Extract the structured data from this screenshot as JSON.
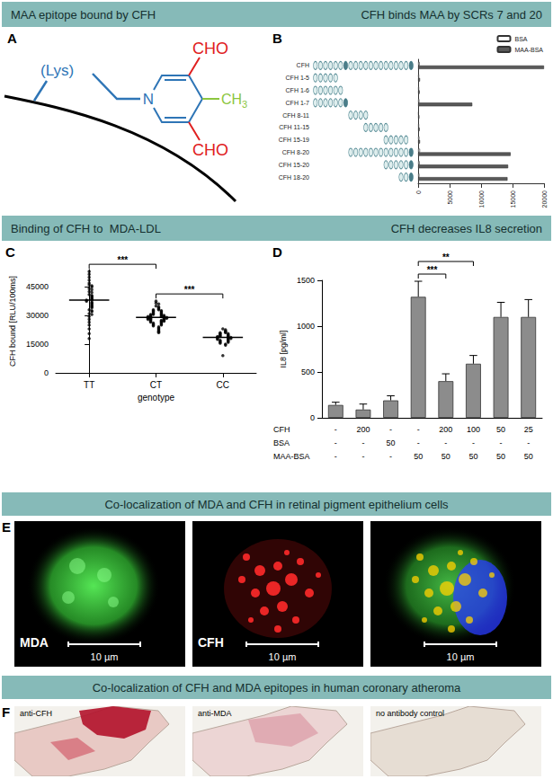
{
  "headers": [
    {
      "left": "MAA epitope bound by CFH",
      "right": "CFH binds MAA by SCRs 7 and 20"
    },
    {
      "left": "Binding of CFH to  MDA-LDL",
      "right": "CFH decreases IL8 secretion"
    },
    {
      "center": "Co-localization of MDA and CFH in retinal pigment epithelium cells"
    },
    {
      "center": "Co-localization of CFH and MDA epitopes in human coronary atheroma"
    }
  ],
  "panel_A": {
    "letter": "A",
    "lysine": "(Lys)",
    "nitrogen": "N",
    "aldehydes": [
      "CHO",
      "CHO"
    ],
    "methyl": "CH3"
  },
  "chart_data": [
    {
      "letter": "B",
      "type": "bar",
      "orientation": "horizontal",
      "categories": [
        "CFH",
        "CFH 1-5",
        "CFH 1-6",
        "CFH 1-7",
        "CFH 8-11",
        "CFH 11-15",
        "CFH 15-19",
        "CFH 8-20",
        "CFH 15-20",
        "CFH 18-20"
      ],
      "domains": [
        [
          1,
          20
        ],
        [
          1,
          5
        ],
        [
          1,
          6
        ],
        [
          1,
          7
        ],
        [
          8,
          11
        ],
        [
          11,
          15
        ],
        [
          15,
          19
        ],
        [
          8,
          20
        ],
        [
          15,
          20
        ],
        [
          18,
          20
        ]
      ],
      "highlighted_scrs": [
        7,
        20
      ],
      "series": [
        {
          "name": "BSA",
          "color": "#ffffff",
          "values": [
            250,
            150,
            150,
            200,
            100,
            150,
            200,
            300,
            250,
            200
          ]
        },
        {
          "name": "MAA-BSA",
          "color": "#595959",
          "values": [
            20000,
            300,
            250,
            8600,
            200,
            250,
            300,
            14700,
            14300,
            14200
          ]
        }
      ],
      "xlim": [
        0,
        20000
      ],
      "xticks": [
        0,
        5000,
        10000,
        15000,
        20000
      ],
      "legend": "top-right",
      "grid": false
    },
    {
      "letter": "C",
      "type": "scatter",
      "categories": [
        "TT",
        "CT",
        "CC"
      ],
      "values": [
        [
          53000,
          51500,
          50000,
          48500,
          47000,
          46000,
          45500,
          45000,
          44000,
          43500,
          42500,
          42000,
          41000,
          40500,
          40000,
          39500,
          39000,
          38500,
          38000,
          38000,
          37500,
          37000,
          36500,
          36000,
          35500,
          35000,
          34500,
          34000,
          33000,
          32500,
          32000,
          31000,
          30500,
          29500,
          28000,
          26500,
          25000,
          23000,
          20500,
          18000
        ],
        [
          37500,
          36500,
          36000,
          35000,
          34500,
          34000,
          33500,
          33000,
          33000,
          32500,
          32500,
          32000,
          32000,
          31500,
          31500,
          31000,
          31000,
          30500,
          30500,
          30500,
          30000,
          30000,
          30000,
          29500,
          29500,
          29500,
          29500,
          29000,
          29000,
          29000,
          29000,
          28500,
          28500,
          28500,
          28500,
          28000,
          28000,
          28000,
          27500,
          27500,
          27500,
          27000,
          27000,
          27000,
          26500,
          26500,
          26000,
          26000,
          25500,
          25500,
          25000,
          25000,
          24500,
          24000,
          23500,
          23000,
          22500,
          22000,
          21500,
          21000
        ],
        [
          23000,
          22500,
          22000,
          21500,
          21000,
          21000,
          20500,
          20500,
          20000,
          20000,
          19500,
          19500,
          19000,
          19000,
          19000,
          18500,
          18500,
          18500,
          18000,
          18000,
          18000,
          17500,
          17500,
          17000,
          17000,
          16500,
          16500,
          16000,
          16000,
          15500,
          15000,
          14500,
          9000
        ]
      ],
      "means": [
        38000,
        29000,
        18500
      ],
      "xlabel": "genotype",
      "ylabel": "CFH bound [RLU/100ms]",
      "ylim": [
        0,
        54000
      ],
      "yticks": [
        0,
        15000,
        30000,
        45000
      ],
      "color": "#000000",
      "marker": "circle",
      "grid": false,
      "brackets": [
        {
          "from": "TT",
          "to": "CT",
          "label": "***"
        },
        {
          "from": "CT",
          "to": "CC",
          "label": "***"
        }
      ]
    },
    {
      "letter": "D",
      "type": "bar",
      "values": [
        140,
        90,
        190,
        1320,
        400,
        590,
        1100,
        1100
      ],
      "errors": [
        30,
        60,
        50,
        170,
        80,
        90,
        160,
        190
      ],
      "color": "#8c8c8c",
      "ylabel": "IL8 [pg/ml]",
      "ylim": [
        0,
        1500
      ],
      "yticks": [
        0,
        500,
        1000,
        1500
      ],
      "grid": false,
      "table": [
        {
          "name": "CFH",
          "cells": [
            "-",
            "200",
            "-",
            "-",
            "200",
            "100",
            "50",
            "25"
          ]
        },
        {
          "name": "BSA",
          "cells": [
            "-",
            "-",
            "50",
            "-",
            "-",
            "-",
            "-",
            "-"
          ]
        },
        {
          "name": "MAA-BSA",
          "cells": [
            "-",
            "-",
            "-",
            "50",
            "50",
            "50",
            "50",
            "50"
          ]
        }
      ],
      "brackets": [
        {
          "from": 3,
          "to": 4,
          "label": "***"
        },
        {
          "from": 3,
          "to": 5,
          "label": "**"
        }
      ]
    }
  ],
  "panel_E": {
    "letter": "E",
    "images": [
      {
        "label": "MDA",
        "scale_bar": "10 µm"
      },
      {
        "label": "CFH",
        "scale_bar": "10 µm"
      },
      {
        "scale_bar": "10 µm"
      }
    ]
  },
  "panel_F": {
    "letter": "F",
    "images": [
      {
        "label": "anti-CFH"
      },
      {
        "label": "anti-MDA"
      },
      {
        "label": "no antibody control"
      }
    ]
  }
}
